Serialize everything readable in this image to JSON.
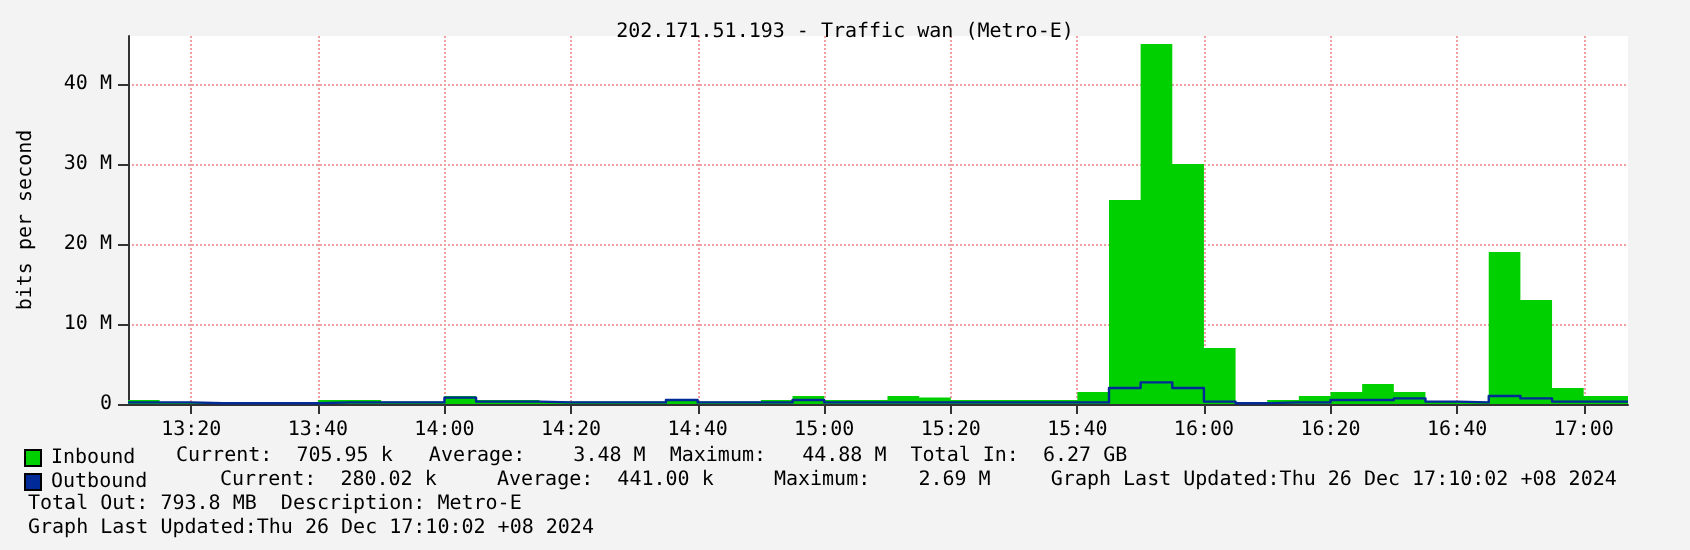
{
  "chart_data": {
    "type": "area",
    "title": "202.171.51.193 - Traffic wan (Metro-E)",
    "ylabel": "bits per second",
    "x": [
      13.1667,
      13.25,
      13.3333,
      13.4167,
      13.5,
      13.5833,
      13.6667,
      13.75,
      13.8333,
      13.9167,
      14,
      14.0833,
      14.1667,
      14.25,
      14.3333,
      14.4167,
      14.5,
      14.5833,
      14.6667,
      14.75,
      14.8333,
      14.9167,
      15,
      15.0833,
      15.1667,
      15.25,
      15.3333,
      15.4167,
      15.5,
      15.5833,
      15.6667,
      15.75,
      15.8333,
      15.9167,
      16,
      16.0833,
      16.1667,
      16.25,
      16.3333,
      16.4167,
      16.5,
      16.5833,
      16.6667,
      16.75,
      16.8333,
      16.9167,
      17,
      17.0833,
      17.1167
    ],
    "series": [
      {
        "name": "Inbound",
        "type": "area",
        "color": "#00cf00",
        "values": [
          0.5,
          0.2,
          0.1,
          0.1,
          0.1,
          0.1,
          0.5,
          0.5,
          0.3,
          0.3,
          1,
          0.5,
          0.5,
          0.3,
          0.3,
          0.3,
          0.3,
          0.5,
          0.3,
          0.3,
          0.5,
          1,
          0.5,
          0.5,
          1,
          0.8,
          0.5,
          0.5,
          0.5,
          0.5,
          1.5,
          25.5,
          45,
          30,
          7,
          0.2,
          0.5,
          1,
          1.5,
          2.5,
          1.5,
          0.3,
          0.2,
          19,
          13,
          2,
          1,
          1,
          1
        ]
      },
      {
        "name": "Outbound",
        "type": "step",
        "color": "#002a97",
        "values": [
          0.2,
          0.2,
          0.1,
          0.1,
          0.1,
          0.1,
          0.2,
          0.2,
          0.2,
          0.2,
          0.8,
          0.3,
          0.3,
          0.2,
          0.2,
          0.2,
          0.2,
          0.5,
          0.2,
          0.2,
          0.2,
          0.5,
          0.2,
          0.2,
          0.2,
          0.2,
          0.2,
          0.2,
          0.2,
          0.2,
          0.2,
          2,
          2.7,
          2,
          0.3,
          0.1,
          0.2,
          0.2,
          0.5,
          0.5,
          0.7,
          0.3,
          0.2,
          1,
          0.7,
          0.3,
          0.3,
          0.3,
          0.3
        ]
      }
    ],
    "xlim": [
      13.1667,
      17.1167
    ],
    "xticks": [
      {
        "value": 13.3333,
        "label": "13:20"
      },
      {
        "value": 13.6667,
        "label": "13:40"
      },
      {
        "value": 14,
        "label": "14:00"
      },
      {
        "value": 14.3333,
        "label": "14:20"
      },
      {
        "value": 14.6667,
        "label": "14:40"
      },
      {
        "value": 15,
        "label": "15:00"
      },
      {
        "value": 15.3333,
        "label": "15:20"
      },
      {
        "value": 15.6667,
        "label": "15:40"
      },
      {
        "value": 16,
        "label": "16:00"
      },
      {
        "value": 16.3333,
        "label": "16:20"
      },
      {
        "value": 16.6667,
        "label": "16:40"
      },
      {
        "value": 17,
        "label": "17:00"
      }
    ],
    "ylim": [
      0,
      46
    ],
    "yticks": [
      0,
      {
        "value": 10,
        "label": "10 M"
      },
      {
        "value": 20,
        "label": "20 M"
      },
      {
        "value": 30,
        "label": "30 M"
      },
      {
        "value": 40,
        "label": "40 M"
      }
    ],
    "grid": true,
    "legend": "bottom left",
    "annotations": [
      "Current:  705.95 k   Average:    3.48 M  Maximum:   44.88 M  Total In:  6.27 GB",
      "Current:  280.02 k     Average:  441.00 k     Maximum:    2.69 M     Graph Last Updated:Thu 26 Dec 17:10:02 +08 2024",
      "Total Out: 793.8 MB  Description: Metro-E",
      "Graph Last Updated:Thu 26 Dec 17:10:02 +08 2024"
    ]
  }
}
